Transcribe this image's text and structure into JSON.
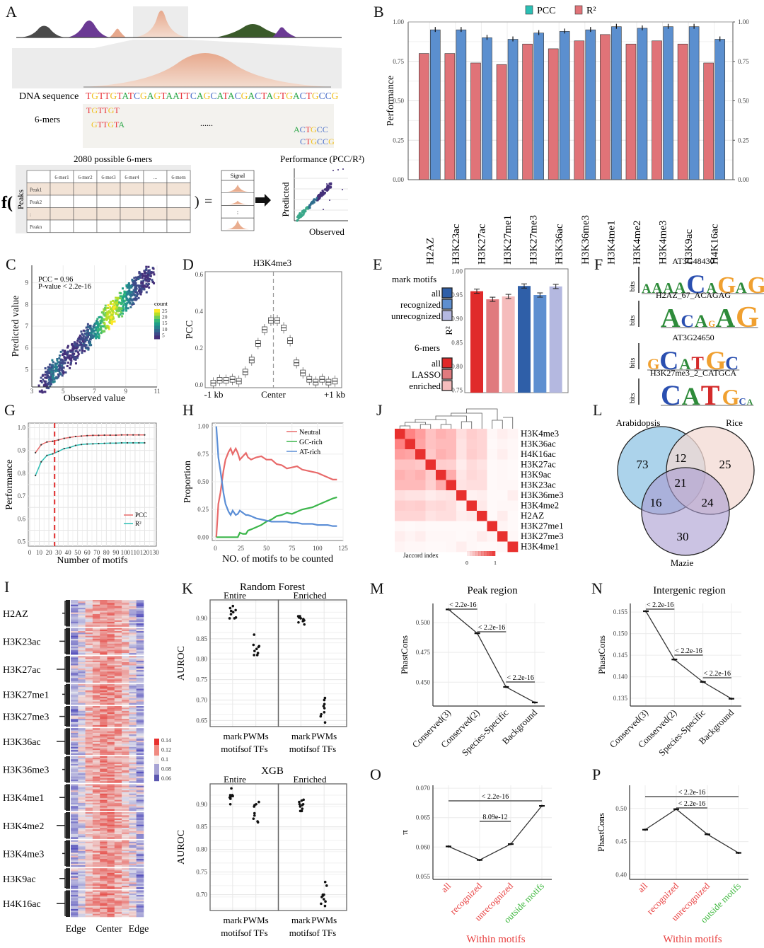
{
  "panel_labels": {
    "A": "A",
    "B": "B",
    "C": "C",
    "D": "D",
    "E": "E",
    "F": "F",
    "G": "G",
    "H": "H",
    "I": "I",
    "J": "J",
    "K": "K",
    "L": "L",
    "M": "M",
    "N": "N",
    "O": "O",
    "P": "P"
  },
  "colors": {
    "pcc_blue": "#5b8fcf",
    "r2_red": "#e07378",
    "peak_orange": "#e7b49a",
    "dark_red": "#e02a2a",
    "green": "#3db83d",
    "teal": "#2bbfb4",
    "gc_green": "#3bb54a",
    "at_blue": "#5b8ed6",
    "neutral_red": "#e86a6a"
  },
  "panel_a": {
    "dna_label": "DNA sequence",
    "dna_sequence": "TGTTGTATCGAGTAATTCAGCATACGACTAGTGACTGCCG",
    "kmers_label": "6-mers",
    "kmers": [
      "TGTTGT",
      "GTTGTA",
      "ACTGCC",
      "CTGCCG"
    ],
    "ellipsis": "......",
    "matrix_title": "2080 possible 6-mers",
    "matrix_cols": [
      "6-mer1",
      "6-mer2",
      "6-mer3",
      "6-mer4",
      "...",
      "6-mern"
    ],
    "matrix_rows": [
      "Peak1",
      "Peak2",
      ":",
      "Peakn"
    ],
    "rows_axis": "Peaks",
    "f_label": "f(",
    "close_paren": ")",
    "equals": "=",
    "signal_label": "Signal",
    "perf_title": "Performance (PCC/R²)",
    "perf_xlabel": "Observed",
    "perf_ylabel": "Predicted",
    "nucleotide_colors": {
      "A": "#2ea84a",
      "C": "#4a6fc9",
      "G": "#f0c020",
      "T": "#e8333a"
    }
  },
  "chart_data": [
    {
      "id": "B",
      "type": "bar",
      "title": "",
      "ylabel": "Performance",
      "xlabel": "",
      "ylim": [
        0,
        1.0
      ],
      "yticks": [
        0.0,
        0.25,
        0.5,
        0.75,
        1.0
      ],
      "legend": [
        "PCC",
        "R²"
      ],
      "legend_position": "top",
      "categories": [
        "H2AZ",
        "H3K23ac",
        "H3K27ac",
        "H3K27me1",
        "H3K27me3",
        "H3K36ac",
        "H3K36me3",
        "H3K4me1",
        "H3K4me2",
        "H3K4me3",
        "H3K9ac",
        "H4K16ac"
      ],
      "series": [
        {
          "name": "R²",
          "values": [
            0.8,
            0.8,
            0.74,
            0.73,
            0.86,
            0.83,
            0.88,
            0.92,
            0.86,
            0.88,
            0.86,
            0.74
          ]
        },
        {
          "name": "PCC",
          "values": [
            0.95,
            0.95,
            0.9,
            0.89,
            0.93,
            0.94,
            0.95,
            0.97,
            0.96,
            0.97,
            0.97,
            0.89
          ]
        }
      ]
    },
    {
      "id": "C",
      "type": "heatmap",
      "xlabel": "Observed value",
      "ylabel": "Predicted value",
      "xlim": [
        3,
        11
      ],
      "ylim": [
        4.2,
        9.8
      ],
      "xticks": [
        3,
        5,
        7,
        9,
        11
      ],
      "yticks": [
        5,
        6,
        7,
        8,
        9
      ],
      "annotation": [
        "PCC = 0.96",
        "P-value < 2.2e-16"
      ],
      "colorbar_title": "count",
      "colorbar_ticks": [
        25,
        20,
        15,
        10,
        5
      ]
    },
    {
      "id": "D",
      "type": "box",
      "title": "H3K4me3",
      "ylabel": "PCC",
      "ylim": [
        0,
        0.6
      ],
      "yticks": [
        0.0,
        0.2,
        0.4,
        0.6
      ],
      "xticklabels": [
        "-1 kb",
        "Center",
        "+1 kb"
      ],
      "medians": [
        0.01,
        0.025,
        0.025,
        0.03,
        0.02,
        0.07,
        0.135,
        0.225,
        0.3,
        0.35,
        0.35,
        0.31,
        0.24,
        0.12,
        0.065,
        0.03,
        0.015,
        0.03,
        0.015,
        0.02
      ]
    },
    {
      "id": "E",
      "type": "bar",
      "ylabel": "R²",
      "ylim": [
        0.75,
        1.0
      ],
      "yticks": [
        0.75,
        0.8,
        0.85,
        0.9,
        0.95,
        1.0
      ],
      "legend_groups": [
        {
          "title": "mark motifs",
          "items": [
            "all",
            "recognized",
            "unrecognized"
          ]
        },
        {
          "title": "6-mers",
          "items": [
            "all",
            "LASSO",
            "enriched"
          ]
        }
      ],
      "categories": [
        "6-mers all",
        "6-mers LASSO",
        "6-mers enriched",
        "mark motifs all",
        "mark motifs recognized",
        "mark motifs unrecognized"
      ],
      "values": [
        0.958,
        0.941,
        0.947,
        0.969,
        0.95,
        0.968
      ],
      "bar_colors": [
        "#e02a2a",
        "#e07a7e",
        "#f5bcbc",
        "#2f5fa8",
        "#5e8fd0",
        "#b4b8e0"
      ]
    },
    {
      "id": "G",
      "type": "line",
      "xlabel": "Number of motifs",
      "ylabel": "Performance",
      "xlim": [
        0,
        130
      ],
      "ylim": [
        0.48,
        1.02
      ],
      "xticks": [
        0,
        10,
        20,
        30,
        40,
        50,
        60,
        70,
        80,
        90,
        100,
        110,
        120,
        130
      ],
      "yticks": [
        0.5,
        0.6,
        0.7,
        0.8,
        0.9,
        1.0
      ],
      "vline": 26,
      "x": [
        6,
        12,
        18,
        24,
        30,
        36,
        42,
        48,
        54,
        60,
        66,
        72,
        78,
        84,
        90,
        96,
        102,
        108,
        114,
        120
      ],
      "series": [
        {
          "name": "PCC",
          "values": [
            0.89,
            0.925,
            0.937,
            0.94,
            0.946,
            0.953,
            0.957,
            0.961,
            0.963,
            0.965,
            0.966,
            0.966,
            0.967,
            0.967,
            0.967,
            0.968,
            0.968,
            0.968,
            0.968,
            0.968
          ]
        },
        {
          "name": "R²",
          "values": [
            0.79,
            0.85,
            0.878,
            0.885,
            0.896,
            0.908,
            0.913,
            0.922,
            0.926,
            0.928,
            0.929,
            0.93,
            0.931,
            0.932,
            0.932,
            0.933,
            0.933,
            0.933,
            0.933,
            0.933
          ]
        }
      ],
      "legend_position": "bottom-right"
    },
    {
      "id": "H",
      "type": "line",
      "xlabel": "NO. of motifs to be counted",
      "ylabel": "Proportion",
      "xlim": [
        -3,
        125
      ],
      "ylim": [
        -0.03,
        1.03
      ],
      "xticks": [
        0,
        25,
        50,
        75,
        100,
        125
      ],
      "yticks": [
        0.0,
        0.25,
        0.5,
        0.75,
        1.0
      ],
      "legend_position": "top-right",
      "x": [
        1,
        3,
        5,
        8,
        10,
        13,
        15,
        17,
        20,
        22,
        24,
        27,
        30,
        32,
        35,
        40,
        45,
        50,
        55,
        60,
        65,
        70,
        75,
        80,
        85,
        90,
        95,
        100,
        105,
        110,
        115,
        119
      ],
      "series": [
        {
          "name": "Neutral",
          "values": [
            0,
            0.3,
            0.4,
            0.6,
            0.7,
            0.77,
            0.8,
            0.75,
            0.8,
            0.76,
            0.7,
            0.73,
            0.76,
            0.72,
            0.7,
            0.72,
            0.73,
            0.7,
            0.7,
            0.66,
            0.65,
            0.62,
            0.63,
            0.64,
            0.61,
            0.6,
            0.59,
            0.58,
            0.56,
            0.54,
            0.52,
            0.52
          ]
        },
        {
          "name": "GC-rich",
          "values": [
            0,
            0,
            0,
            0,
            0,
            0,
            0,
            0,
            0,
            0,
            0.04,
            0.03,
            0.03,
            0.06,
            0.07,
            0.09,
            0.11,
            0.14,
            0.16,
            0.19,
            0.2,
            0.22,
            0.21,
            0.23,
            0.25,
            0.26,
            0.27,
            0.29,
            0.31,
            0.33,
            0.35,
            0.36
          ]
        },
        {
          "name": "AT-rich",
          "values": [
            1.0,
            0.72,
            0.6,
            0.4,
            0.3,
            0.23,
            0.2,
            0.24,
            0.2,
            0.21,
            0.24,
            0.22,
            0.2,
            0.2,
            0.19,
            0.17,
            0.16,
            0.15,
            0.14,
            0.14,
            0.14,
            0.14,
            0.13,
            0.13,
            0.12,
            0.12,
            0.12,
            0.11,
            0.11,
            0.11,
            0.1,
            0.1
          ]
        }
      ]
    },
    {
      "id": "J",
      "type": "heatmap",
      "labels": [
        "H3K4me3",
        "H3K36ac",
        "H4K16ac",
        "H3K27ac",
        "H3K9ac",
        "H3K23ac",
        "H3K36me3",
        "H3K4me2",
        "H2AZ",
        "H3K27me1",
        "H3K27me3",
        "H3K4me1"
      ],
      "colorbar_title": "Jaccord index",
      "colorbar_ticks": [
        "0",
        "1"
      ],
      "matrix": [
        [
          1,
          0.45,
          0.35,
          0.22,
          0.28,
          0.25,
          0.12,
          0.18,
          0.15,
          0.03,
          0.06,
          0.04
        ],
        [
          0.45,
          1,
          0.33,
          0.22,
          0.25,
          0.25,
          0.1,
          0.17,
          0.15,
          0.02,
          0.04,
          0.03
        ],
        [
          0.35,
          0.33,
          1,
          0.2,
          0.28,
          0.25,
          0.1,
          0.18,
          0.15,
          0.03,
          0.06,
          0.03
        ],
        [
          0.22,
          0.22,
          0.2,
          1,
          0.18,
          0.17,
          0.07,
          0.13,
          0.1,
          0.02,
          0.03,
          0.02
        ],
        [
          0.28,
          0.25,
          0.28,
          0.18,
          1,
          0.3,
          0.09,
          0.14,
          0.12,
          0.02,
          0.03,
          0.02
        ],
        [
          0.25,
          0.25,
          0.25,
          0.17,
          0.3,
          1,
          0.1,
          0.12,
          0.12,
          0.02,
          0.03,
          0.03
        ],
        [
          0.12,
          0.1,
          0.1,
          0.07,
          0.09,
          0.1,
          1,
          0.05,
          0.06,
          0.02,
          0.02,
          0.06
        ],
        [
          0.18,
          0.17,
          0.18,
          0.13,
          0.14,
          0.12,
          0.05,
          1,
          0.08,
          0.02,
          0.03,
          0.03
        ],
        [
          0.15,
          0.15,
          0.15,
          0.1,
          0.12,
          0.12,
          0.06,
          0.08,
          1,
          0.02,
          0.07,
          0.02
        ],
        [
          0.03,
          0.02,
          0.03,
          0.02,
          0.02,
          0.02,
          0.02,
          0.02,
          0.02,
          1,
          0.04,
          0.02
        ],
        [
          0.06,
          0.04,
          0.06,
          0.03,
          0.03,
          0.03,
          0.02,
          0.03,
          0.07,
          0.04,
          1,
          0.03
        ],
        [
          0.04,
          0.03,
          0.03,
          0.02,
          0.02,
          0.03,
          0.06,
          0.03,
          0.02,
          0.02,
          0.03,
          1
        ]
      ]
    },
    {
      "id": "I",
      "type": "heatmap",
      "row_groups": [
        "H2AZ",
        "H3K23ac",
        "H3K27ac",
        "H3K27me1",
        "H3K27me3",
        "H3K36ac",
        "H3K36me3",
        "H3K4me1",
        "H3K4me2",
        "H3K4me3",
        "H3K9ac",
        "H4K16ac"
      ],
      "xticklabels": [
        "Edge",
        "Center",
        "Edge"
      ],
      "colorbar_ticks": [
        0.14,
        0.12,
        0.1,
        0.08,
        0.06
      ]
    },
    {
      "id": "K1",
      "type": "scatter",
      "title": "Random Forest",
      "facets": [
        "Entire",
        "Enriched"
      ],
      "ylabel": "AUROC",
      "ylim": [
        0.635,
        0.945
      ],
      "yticks": [
        0.65,
        0.7,
        0.75,
        0.8,
        0.85,
        0.9
      ],
      "categories": [
        "mark motifs",
        "PWMs of TFs"
      ],
      "points": {
        "Entire": [
          [
            0.9,
            0.91,
            0.92,
            0.925,
            0.93,
            0.915,
            0.9,
            0.902,
            0.918
          ],
          [
            0.86,
            0.835,
            0.83,
            0.82,
            0.815,
            0.81,
            0.81,
            0.825,
            0.832
          ]
        ],
        "Enriched": [
          [
            0.885,
            0.89,
            0.895,
            0.9,
            0.905,
            0.902,
            0.898,
            0.893,
            0.905
          ],
          [
            0.705,
            0.7,
            0.69,
            0.685,
            0.67,
            0.665,
            0.66,
            0.68,
            0.645
          ]
        ]
      }
    },
    {
      "id": "K2",
      "type": "scatter",
      "title": "XGB",
      "facets": [
        "Entire",
        "Enriched"
      ],
      "ylabel": "AUROC",
      "ylim": [
        0.665,
        0.945
      ],
      "yticks": [
        0.7,
        0.75,
        0.8,
        0.85,
        0.9
      ],
      "categories": [
        "mark motifs",
        "PWMs of TFs"
      ],
      "points": {
        "Entire": [
          [
            0.935,
            0.92,
            0.918,
            0.915,
            0.912,
            0.92,
            0.9,
            0.917
          ],
          [
            0.905,
            0.9,
            0.898,
            0.895,
            0.88,
            0.875,
            0.868,
            0.862,
            0.86
          ]
        ],
        "Enriched": [
          [
            0.91,
            0.905,
            0.9,
            0.895,
            0.89,
            0.885,
            0.885,
            0.908,
            0.9,
            0.898
          ],
          [
            0.728,
            0.72,
            0.7,
            0.698,
            0.695,
            0.69,
            0.685,
            0.68,
            0.675,
            0.7
          ]
        ]
      }
    },
    {
      "id": "L",
      "type": "venn",
      "sets": [
        "Arabidopsis",
        "Rice",
        "Mazie"
      ],
      "regions": {
        "Arabidopsis_only": 73,
        "Rice_only": 25,
        "Mazie_only": 30,
        "Arabidopsis_Rice": 12,
        "Arabidopsis_Mazie": 16,
        "Rice_Mazie": 24,
        "all": 21
      }
    },
    {
      "id": "M",
      "type": "line",
      "title": "Peak region",
      "ylabel": "PhastCons",
      "categories": [
        "Conserved(3)",
        "Conserved(2)",
        "Species-Specific",
        "Background"
      ],
      "values": [
        0.511,
        0.491,
        0.446,
        0.433
      ],
      "ylim": [
        0.43,
        0.516
      ],
      "yticks": [
        0.45,
        0.475,
        0.5
      ],
      "annotations": [
        "< 2.2e-16",
        "< 2.2e-16",
        "< 2.2e-16"
      ]
    },
    {
      "id": "N",
      "type": "line",
      "title": "Intergenic region",
      "ylabel": "PhastCons",
      "categories": [
        "Conserved(3)",
        "Conserved(2)",
        "Species-Specific",
        "Background"
      ],
      "values": [
        0.1552,
        0.144,
        0.1388,
        0.1349
      ],
      "ylim": [
        0.1332,
        0.157
      ],
      "yticks": [
        0.135,
        0.14,
        0.145,
        0.15,
        0.155
      ],
      "annotations": [
        "< 2.2e-16",
        "< 2.2e-16",
        "< 2.2e-16"
      ]
    },
    {
      "id": "O",
      "type": "line",
      "ylabel": "π",
      "xlabel": "Within motifs",
      "categories": [
        "all",
        "recognized",
        "unrecognized",
        "outside motifs"
      ],
      "values": [
        0.0601,
        0.0578,
        0.0605,
        0.067
      ],
      "ylim": [
        0.0545,
        0.0705
      ],
      "yticks": [
        0.055,
        0.06,
        0.065,
        0.07
      ],
      "annotations": [
        "< 2.2e-16",
        "8.09e-12"
      ]
    },
    {
      "id": "P",
      "type": "line",
      "ylabel": "PhastCons",
      "xlabel": "Within motifs",
      "categories": [
        "all",
        "recognized",
        "unrecognized",
        "outside motifs"
      ],
      "values": [
        0.468,
        0.499,
        0.461,
        0.433
      ],
      "ylim": [
        0.393,
        0.535
      ],
      "yticks": [
        0.4,
        0.45,
        0.5
      ],
      "annotations": [
        "< 2.2e-16",
        "< 2.2e-16"
      ]
    }
  ],
  "panel_f": {
    "logos": [
      {
        "title": "AT3G48430",
        "ylabel": "bits",
        "letters": "AAAACAGAG"
      },
      {
        "title": "H2AZ_67_ACAGAG",
        "ylabel": "bits",
        "letters": "ACAGAG"
      },
      {
        "title": "AT3G24650",
        "ylabel": "bits",
        "letters": "GCATGC"
      },
      {
        "title": "H3K27me3_2_CATGCA",
        "ylabel": "bits",
        "letters": "CATGCA"
      }
    ]
  }
}
